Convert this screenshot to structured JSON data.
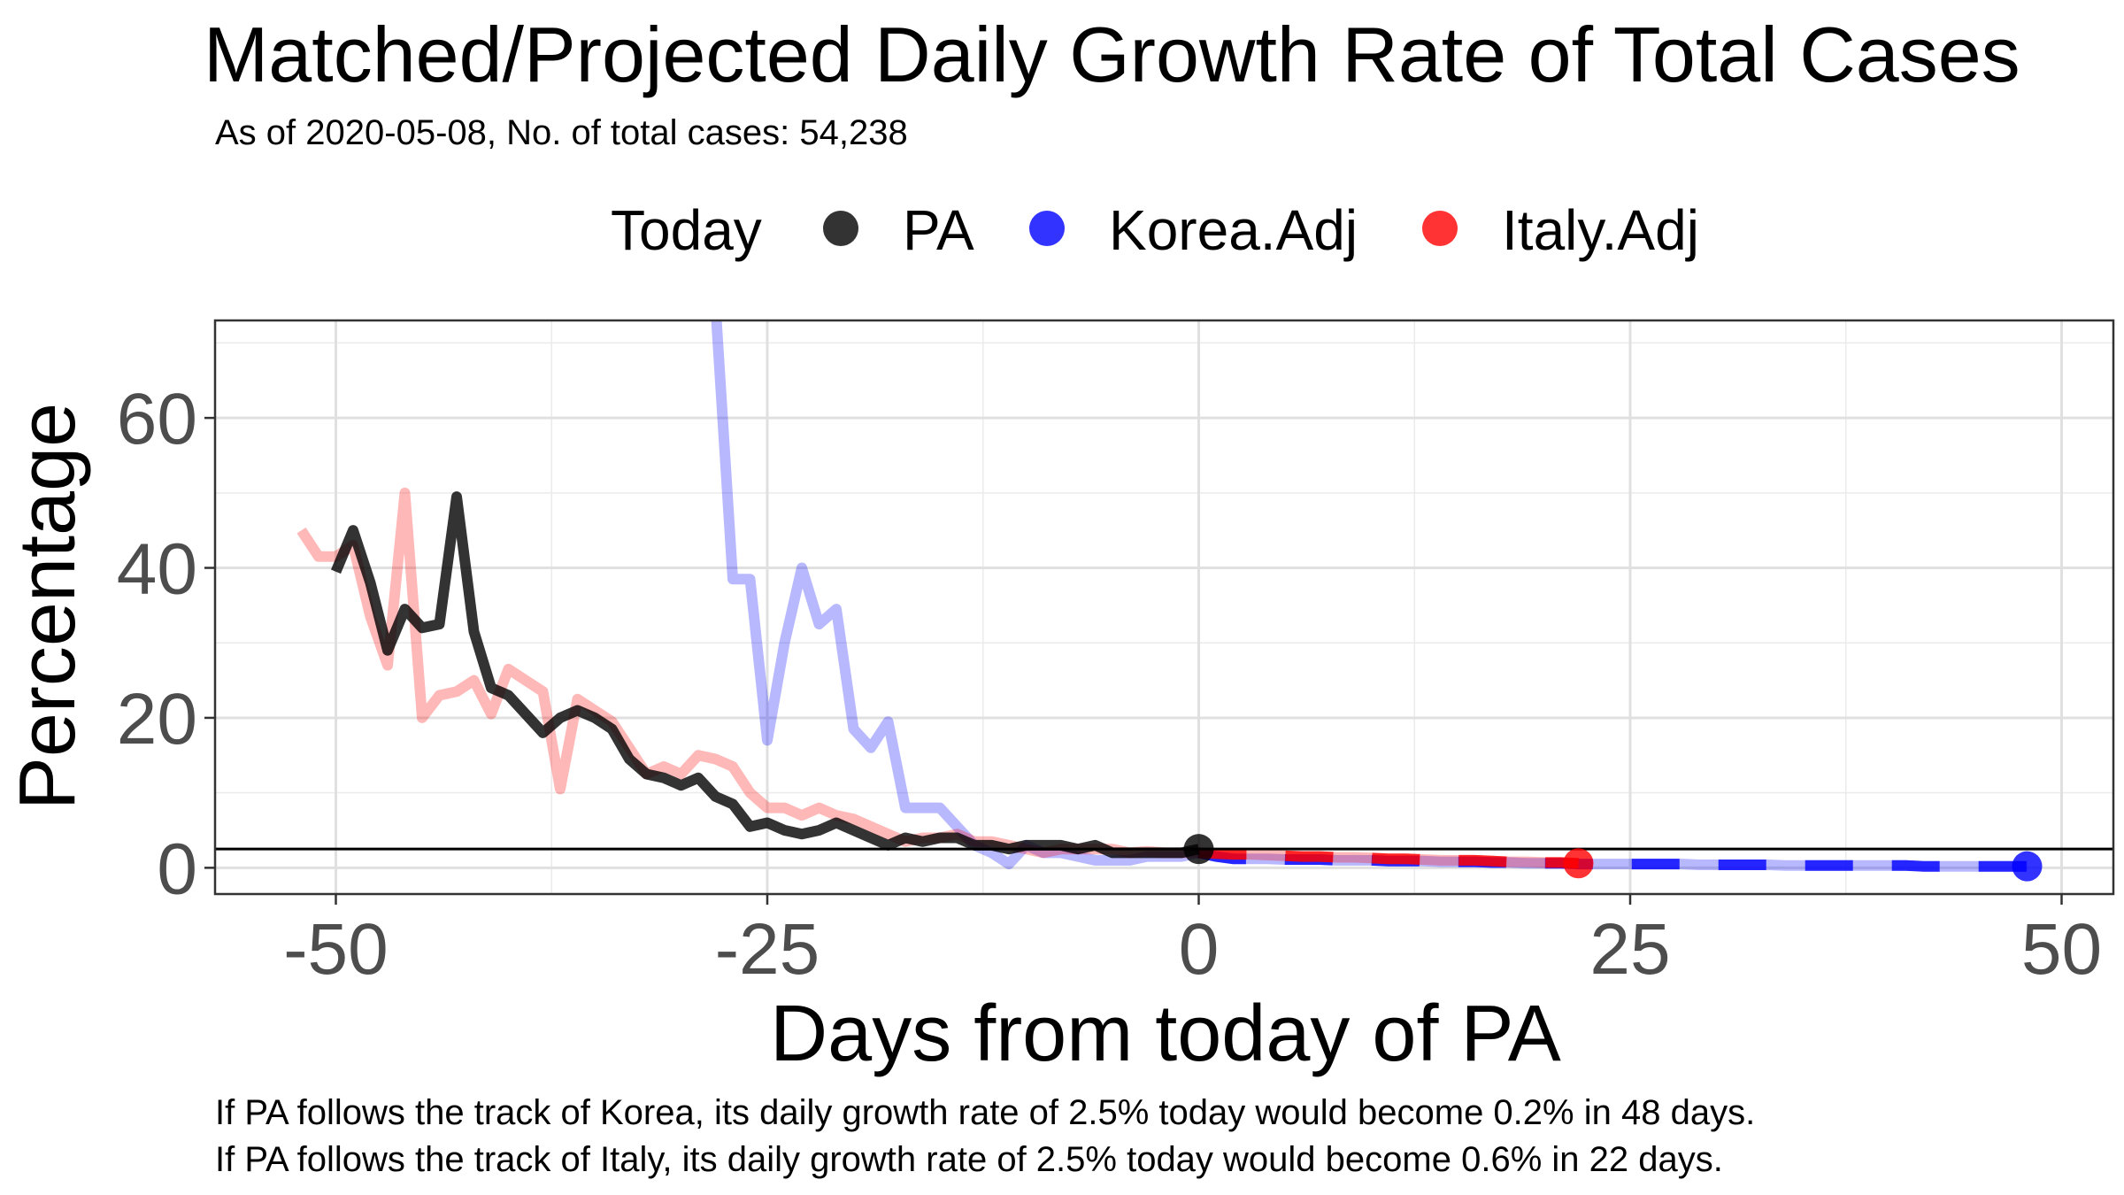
{
  "chart_data": {
    "type": "line",
    "title": "Matched/Projected Daily Growth Rate of Total Cases",
    "subtitle": "As of 2020-05-08, No. of total cases: 54,238",
    "xlabel": "Days from today of PA",
    "ylabel": "Percentage",
    "xlim": [
      -57,
      53
    ],
    "ylim": [
      -3.5,
      73
    ],
    "x_ticks": [
      -50,
      -25,
      0,
      25,
      50
    ],
    "x_tick_labels": [
      "-50",
      "-25",
      "0",
      "25",
      "50"
    ],
    "y_ticks": [
      0,
      20,
      40,
      60
    ],
    "y_tick_labels": [
      "0",
      "20",
      "40",
      "60"
    ],
    "grid": true,
    "legend": {
      "title": "Today",
      "position": "top",
      "items": [
        {
          "label": "PA",
          "color": "#000000"
        },
        {
          "label": "Korea.Adj",
          "color": "#0000ff"
        },
        {
          "label": "Italy.Adj",
          "color": "#ff0000"
        }
      ]
    },
    "reference_line": {
      "y": 2.5
    },
    "series": [
      {
        "name": "PA",
        "color": "#000000",
        "x": [
          -50,
          -49,
          -48,
          -47,
          -46,
          -45,
          -44,
          -43,
          -42,
          -41,
          -40,
          -39,
          -38,
          -37,
          -36,
          -35,
          -34,
          -33,
          -32,
          -31,
          -30,
          -29,
          -28,
          -27,
          -26,
          -25,
          -24,
          -23,
          -22,
          -21,
          -20,
          -19,
          -18,
          -17,
          -16,
          -15,
          -14,
          -13,
          -12,
          -11,
          -10,
          -9,
          -8,
          -7,
          -6,
          -5,
          -4,
          -3,
          -2,
          -1,
          0
        ],
        "values": [
          39.5,
          45,
          38,
          29,
          34.5,
          32,
          32.5,
          49.5,
          31.5,
          24,
          23,
          20.5,
          18,
          20,
          21,
          20,
          18.5,
          14.5,
          12.5,
          12,
          11,
          12,
          9.5,
          8.5,
          5.5,
          6,
          5,
          4.5,
          5,
          6,
          5,
          4,
          3,
          4,
          3.5,
          4,
          4,
          3,
          3,
          2.5,
          3,
          3,
          3,
          2.5,
          3,
          2,
          2,
          2,
          2,
          2,
          2.5
        ]
      },
      {
        "name": "Korea.Adj",
        "color": "#0000ff",
        "x": [
          -28,
          -27,
          -26,
          -25,
          -24,
          -23,
          -22,
          -21,
          -20,
          -19,
          -18,
          -17,
          -16,
          -15,
          -14,
          -13,
          -12,
          -11,
          -10,
          -9,
          -8,
          -7,
          -6,
          -5,
          -4,
          -3,
          -2,
          -1,
          0,
          1,
          2,
          3,
          4,
          5,
          6,
          7,
          8,
          9,
          10,
          11,
          12,
          13,
          14,
          15,
          16,
          17,
          18,
          19,
          20,
          21,
          22,
          23,
          24,
          25,
          26,
          27,
          28,
          29,
          30,
          31,
          32,
          33,
          34,
          35,
          36,
          37,
          38,
          39,
          40,
          41,
          42,
          43,
          44,
          45,
          46,
          47,
          48
        ],
        "values": [
          75,
          38.5,
          38.5,
          17,
          30,
          40,
          32.5,
          34.5,
          18.5,
          16,
          19.5,
          8,
          8,
          8,
          5.5,
          3,
          2,
          0.5,
          3,
          2,
          2,
          1.5,
          1,
          1,
          1,
          1.5,
          1.5,
          1.5,
          2,
          1.5,
          1.2,
          1.2,
          1.2,
          1.1,
          1.1,
          1.1,
          1,
          1,
          1,
          0.9,
          0.9,
          0.9,
          0.8,
          0.8,
          0.8,
          0.7,
          0.7,
          0.6,
          0.6,
          0.6,
          0.5,
          0.5,
          0.5,
          0.5,
          0.5,
          0.5,
          0.5,
          0.4,
          0.4,
          0.4,
          0.4,
          0.4,
          0.3,
          0.3,
          0.3,
          0.3,
          0.3,
          0.3,
          0.3,
          0.3,
          0.2,
          0.2,
          0.2,
          0.2,
          0.2,
          0.2,
          0.2
        ]
      },
      {
        "name": "Italy.Adj",
        "color": "#ff0000",
        "x": [
          -52,
          -51,
          -50,
          -49,
          -48,
          -47,
          -46,
          -45,
          -44,
          -43,
          -42,
          -41,
          -40,
          -39,
          -38,
          -37,
          -36,
          -35,
          -34,
          -33,
          -32,
          -31,
          -30,
          -29,
          -28,
          -27,
          -26,
          -25,
          -24,
          -23,
          -22,
          -21,
          -20,
          -19,
          -18,
          -17,
          -16,
          -15,
          -14,
          -13,
          -12,
          -11,
          -10,
          -9,
          -8,
          -7,
          -6,
          -5,
          -4,
          -3,
          -2,
          -1,
          0,
          1,
          2,
          3,
          4,
          5,
          6,
          7,
          8,
          9,
          10,
          11,
          12,
          13,
          14,
          15,
          16,
          17,
          18,
          19,
          20,
          21,
          22
        ],
        "values": [
          45,
          41.5,
          41.5,
          43,
          33.5,
          27,
          50,
          20,
          23,
          23.5,
          25,
          20.5,
          26.5,
          25,
          23.5,
          10.5,
          22.5,
          21,
          19.5,
          16,
          12.5,
          13.5,
          12.5,
          15,
          14.5,
          13.5,
          10,
          8,
          8,
          7,
          8,
          7,
          6.5,
          5.5,
          4.5,
          3.5,
          4,
          4,
          4.5,
          3.5,
          3.5,
          3,
          2.5,
          2,
          2.5,
          2.5,
          2.5,
          2.5,
          2,
          2.2,
          2,
          2,
          2,
          1.9,
          1.8,
          1.8,
          1.7,
          1.6,
          1.5,
          1.5,
          1.4,
          1.4,
          1.3,
          1.2,
          1.2,
          1.1,
          1,
          1,
          1,
          0.9,
          0.8,
          0.8,
          0.7,
          0.7,
          0.6
        ]
      }
    ],
    "today_points": [
      {
        "series": "PA",
        "x": 0,
        "y": 2.5,
        "color": "#000000"
      },
      {
        "series": "Korea.Adj",
        "x": 48,
        "y": 0.2,
        "color": "#0000ff"
      },
      {
        "series": "Italy.Adj",
        "x": 22,
        "y": 0.6,
        "color": "#ff0000"
      }
    ],
    "captions": [
      "If PA follows the track of Korea, its daily growth rate of 2.5% today would become 0.2% in 48 days.",
      "If PA follows the track of Italy, its daily growth rate of 2.5% today would become 0.6% in 22 days."
    ]
  }
}
